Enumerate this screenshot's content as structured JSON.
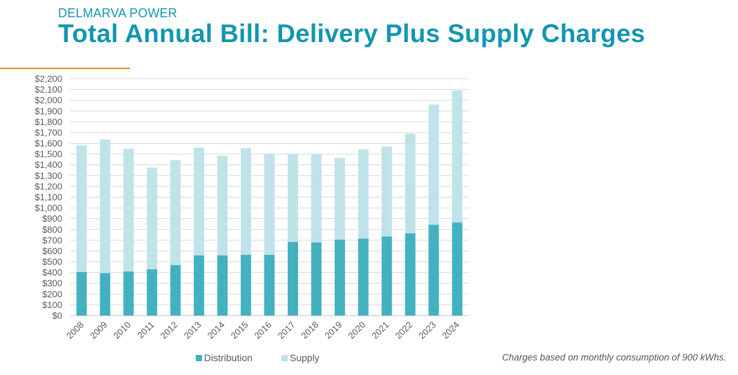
{
  "header": {
    "subtitle": "DELMARVA POWER",
    "title": "Total Annual Bill: Delivery Plus Supply Charges"
  },
  "footnote": "Charges based on monthly consumption of 900 kWhs.",
  "colors": {
    "accent": "#1596b0",
    "distribution": "#44b1c1",
    "supply": "#bfe3e9",
    "accent_line": "#e8911b"
  },
  "chart_data": {
    "type": "bar",
    "stacked": true,
    "categories": [
      "2008",
      "2009",
      "2010",
      "2011",
      "2012",
      "2013",
      "2014",
      "2015",
      "2016",
      "2017",
      "2018",
      "2019",
      "2020",
      "2021",
      "2022",
      "2023",
      "2024"
    ],
    "series": [
      {
        "name": "Distribution",
        "color": "#44b1c1",
        "values": [
          405,
          395,
          410,
          430,
          470,
          560,
          560,
          565,
          565,
          685,
          680,
          705,
          715,
          735,
          765,
          845,
          865
        ]
      },
      {
        "name": "Supply",
        "color": "#bfe3e9",
        "values": [
          1175,
          1240,
          1140,
          945,
          975,
          1000,
          925,
          990,
          940,
          815,
          820,
          760,
          830,
          835,
          925,
          1115,
          1225
        ]
      }
    ],
    "yticks": [
      "$0",
      "$100",
      "$200",
      "$300",
      "$400",
      "$500",
      "$600",
      "$700",
      "$800",
      "$900",
      "$1,000",
      "$1,100",
      "$1,200",
      "$1,300",
      "$1,400",
      "$1,500",
      "$1,600",
      "$1,700",
      "$1,800",
      "$1,900",
      "$2,000",
      "$2,100",
      "$2,200"
    ],
    "ylim": [
      0,
      2200
    ],
    "grid": true,
    "legend_position": "bottom"
  }
}
